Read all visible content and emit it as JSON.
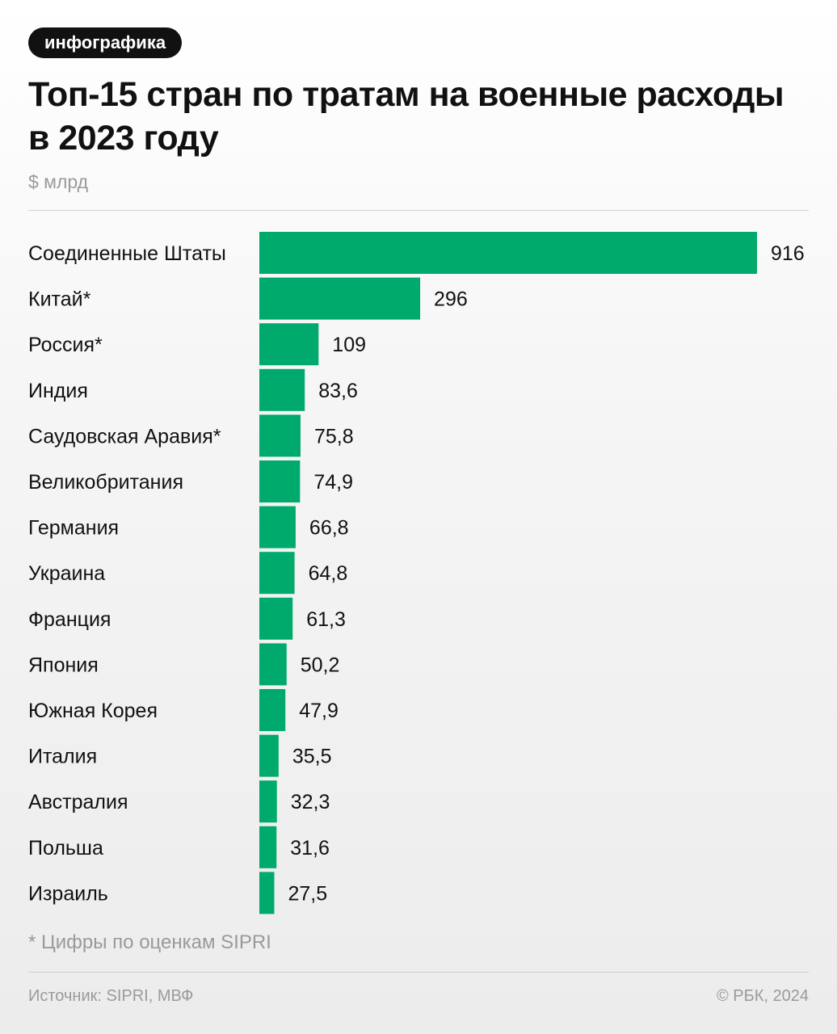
{
  "badge": "инфографика",
  "title": "Топ-15 стран по тратам на военные расходы в 2023 году",
  "unit": "$ млрд",
  "footnote": "* Цифры по оценкам SIPRI",
  "source": "Источник: SIPRI, МВФ",
  "copyright": "© РБК, 2024",
  "colors": {
    "bar": "#00aa6c",
    "text": "#111111",
    "muted": "#9a9a9a"
  },
  "chart_data": {
    "type": "bar",
    "orientation": "horizontal",
    "categories": [
      "Соединенные Штаты",
      "Китай*",
      "Россия*",
      "Индия",
      "Саудовская Аравия*",
      "Великобритания",
      "Германия",
      "Украина",
      "Франция",
      "Япония",
      "Южная Корея",
      "Италия",
      "Австралия",
      "Польша",
      "Израиль"
    ],
    "values": [
      916,
      296,
      109,
      83.6,
      75.8,
      74.9,
      66.8,
      64.8,
      61.3,
      50.2,
      47.9,
      35.5,
      32.3,
      31.6,
      27.5
    ],
    "value_labels": [
      "916",
      "296",
      "109",
      "83,6",
      "75,8",
      "74,9",
      "66,8",
      "64,8",
      "61,3",
      "50,2",
      "47,9",
      "35,5",
      "32,3",
      "31,6",
      "27,5"
    ],
    "xlim": [
      0,
      916
    ],
    "grid": false,
    "legend": "none"
  }
}
